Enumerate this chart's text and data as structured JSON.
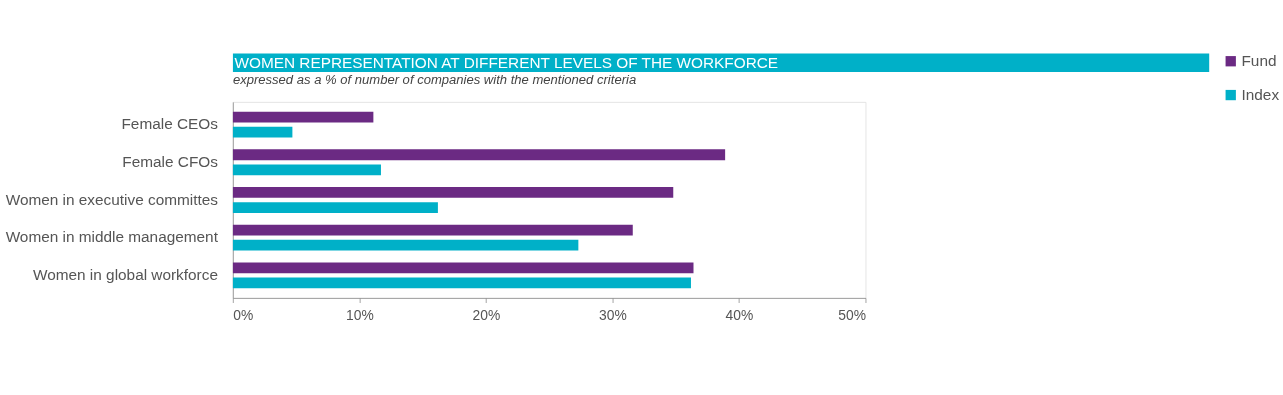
{
  "chart_data": {
    "type": "bar",
    "orientation": "horizontal",
    "title": "WOMEN REPRESENTATION AT DIFFERENT LEVELS OF THE WORKFORCE",
    "subtitle": "expressed as a % of number of companies with the mentioned criteria",
    "categories": [
      "Female CEOs",
      "Female CFOs",
      "Women in executive committes",
      "Women in middle management",
      "Women in global workforce"
    ],
    "series": [
      {
        "name": "Fund",
        "color": "#6b2a83",
        "values": [
          11.1,
          38.9,
          34.8,
          31.6,
          36.4
        ]
      },
      {
        "name": "Index",
        "color": "#00b0c8",
        "values": [
          4.7,
          11.7,
          16.2,
          27.3,
          36.2
        ]
      }
    ],
    "xlim": [
      0,
      50
    ],
    "xticks": [
      {
        "value": 0,
        "label": "0%"
      },
      {
        "value": 10,
        "label": "10%"
      },
      {
        "value": 20,
        "label": "20%"
      },
      {
        "value": 30,
        "label": "30%"
      },
      {
        "value": 40,
        "label": "40%"
      },
      {
        "value": 50,
        "label": "50%"
      }
    ],
    "grid": false,
    "legend": "right"
  }
}
